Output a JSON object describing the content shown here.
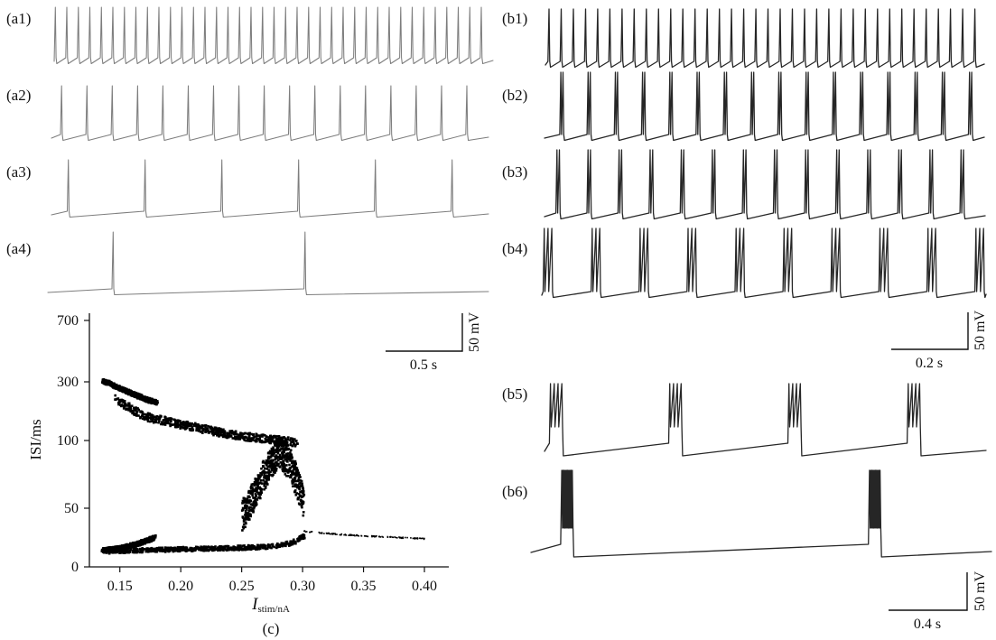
{
  "panels": {
    "a": [
      {
        "label": "(a1)",
        "period_s": 0.075,
        "spikes_per_burst": 1
      },
      {
        "label": "(a2)",
        "period_s": 0.165,
        "spikes_per_burst": 1
      },
      {
        "label": "(a3)",
        "period_s": 0.5,
        "spikes_per_burst": 1
      },
      {
        "label": "(a4)",
        "period_s": 1.25,
        "spikes_per_burst": 1
      }
    ],
    "b": [
      {
        "label": "(b1)",
        "period_s": 0.0317,
        "spikes_per_burst": 1
      },
      {
        "label": "(b2)",
        "period_s": 0.071,
        "spikes_per_burst": 2
      },
      {
        "label": "(b3)",
        "period_s": 0.081,
        "spikes_per_burst": 2
      },
      {
        "label": "(b4)",
        "period_s": 0.125,
        "spikes_per_burst": 3
      },
      {
        "label": "(b5)",
        "period_s": 0.62,
        "spikes_per_burst": 4
      },
      {
        "label": "(b6)",
        "period_s": 1.6,
        "spikes_per_burst": 10
      }
    ]
  },
  "scalebars": {
    "a": {
      "time_label": "0.5 s",
      "voltage_label": "50 mV"
    },
    "b": {
      "time_label": "0.2 s",
      "voltage_label": "50 mV"
    },
    "b_long": {
      "time_label": "0.4 s",
      "voltage_label": "50 mV"
    }
  },
  "chart_data": {
    "type": "scatter",
    "caption": "(c)",
    "xlabel": "I",
    "xlabel_sub": "stim/nA",
    "ylabel": "ISI/ms",
    "xlim": [
      0.125,
      0.42
    ],
    "x_ticks": [
      0.15,
      0.2,
      0.25,
      0.3,
      0.35,
      0.4
    ],
    "x_tick_labels": [
      "0.15",
      "0.20",
      "0.25",
      "0.30",
      "0.35",
      "0.40"
    ],
    "y_scale": "log-like (non-uniform)",
    "y_ticks": [
      0,
      50,
      100,
      300,
      700
    ],
    "y_tick_labels": [
      "0",
      "50",
      "100",
      "300",
      "700"
    ],
    "grid": false,
    "marker_color": "#000000",
    "series": [
      {
        "x": [
          0.135,
          0.15,
          0.16,
          0.17,
          0.18
        ],
        "y": [
          310,
          280,
          262,
          245,
          232
        ]
      },
      {
        "x": [
          0.145,
          0.17,
          0.2,
          0.23,
          0.25,
          0.265,
          0.285,
          0.295
        ],
        "y": [
          245,
          185,
          158,
          132,
          118,
          112,
          102,
          98
        ]
      },
      {
        "x": [
          0.135,
          0.16,
          0.2,
          0.24,
          0.27,
          0.29,
          0.3
        ],
        "y": [
          14,
          15,
          16,
          17,
          18,
          21,
          27
        ]
      },
      {
        "x": [
          0.135,
          0.15,
          0.165,
          0.178
        ],
        "y": [
          15,
          17,
          21,
          26
        ]
      },
      {
        "x": [
          0.25,
          0.26,
          0.27,
          0.28,
          0.29,
          0.3
        ],
        "y": [
          45,
          62,
          80,
          93,
          82,
          55
        ]
      },
      {
        "x": [
          0.3,
          0.32,
          0.35,
          0.38,
          0.4
        ],
        "y": [
          31,
          29,
          27,
          25.5,
          24.5
        ]
      }
    ]
  }
}
